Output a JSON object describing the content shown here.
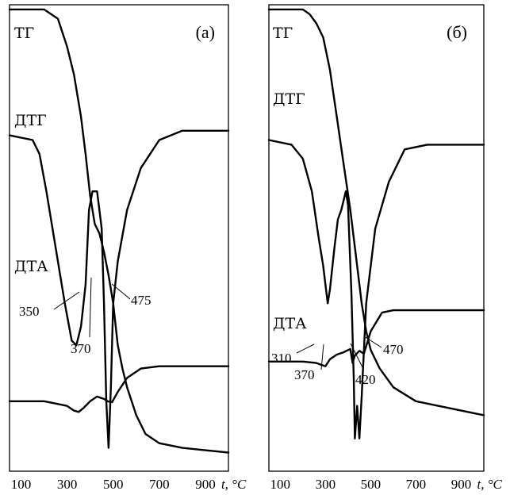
{
  "chart_data": [
    {
      "type": "line",
      "panel_label": "(а)",
      "xlim": [
        50,
        1000
      ],
      "x_ticks": [
        "100",
        "300",
        "500",
        "700",
        "900"
      ],
      "x_unit": "t, °C",
      "grid": false,
      "curves": [
        {
          "name": "ТГ",
          "label": "ТГ",
          "points": [
            [
              50,
              0.99
            ],
            [
              200,
              0.99
            ],
            [
              260,
              0.97
            ],
            [
              300,
              0.91
            ],
            [
              330,
              0.85
            ],
            [
              360,
              0.76
            ],
            [
              380,
              0.68
            ],
            [
              400,
              0.59
            ],
            [
              420,
              0.53
            ],
            [
              440,
              0.51
            ],
            [
              460,
              0.47
            ],
            [
              480,
              0.42
            ],
            [
              500,
              0.36
            ],
            [
              520,
              0.27
            ],
            [
              540,
              0.22
            ],
            [
              560,
              0.18
            ],
            [
              600,
              0.12
            ],
            [
              640,
              0.08
            ],
            [
              700,
              0.06
            ],
            [
              800,
              0.05
            ],
            [
              1000,
              0.04
            ]
          ]
        },
        {
          "name": "ДТГ",
          "label": "ДТГ",
          "points": [
            [
              50,
              0.72
            ],
            [
              150,
              0.71
            ],
            [
              180,
              0.68
            ],
            [
              210,
              0.6
            ],
            [
              250,
              0.48
            ],
            [
              290,
              0.36
            ],
            [
              320,
              0.28
            ],
            [
              340,
              0.27
            ],
            [
              360,
              0.31
            ],
            [
              380,
              0.4
            ],
            [
              395,
              0.56
            ],
            [
              410,
              0.6
            ],
            [
              430,
              0.6
            ],
            [
              450,
              0.52
            ],
            [
              460,
              0.36
            ],
            [
              470,
              0.15
            ],
            [
              480,
              0.05
            ],
            [
              490,
              0.18
            ],
            [
              500,
              0.36
            ],
            [
              520,
              0.45
            ],
            [
              560,
              0.56
            ],
            [
              620,
              0.65
            ],
            [
              700,
              0.71
            ],
            [
              800,
              0.73
            ],
            [
              1000,
              0.73
            ]
          ]
        },
        {
          "name": "ДТА",
          "label": "ДТА",
          "points": [
            [
              50,
              0.15
            ],
            [
              200,
              0.15
            ],
            [
              250,
              0.145
            ],
            [
              300,
              0.14
            ],
            [
              330,
              0.13
            ],
            [
              350,
              0.127
            ],
            [
              370,
              0.135
            ],
            [
              400,
              0.15
            ],
            [
              430,
              0.16
            ],
            [
              460,
              0.155
            ],
            [
              475,
              0.15
            ],
            [
              495,
              0.148
            ],
            [
              520,
              0.17
            ],
            [
              560,
              0.2
            ],
            [
              620,
              0.22
            ],
            [
              700,
              0.225
            ],
            [
              800,
              0.225
            ],
            [
              1000,
              0.225
            ]
          ]
        }
      ],
      "annotations": [
        "350",
        "370",
        "475"
      ]
    },
    {
      "type": "line",
      "panel_label": "(б)",
      "xlim": [
        50,
        1000
      ],
      "x_ticks": [
        "100",
        "300",
        "500",
        "700",
        "900"
      ],
      "x_unit": "t, °C",
      "grid": false,
      "curves": [
        {
          "name": "ТГ",
          "label": "ТГ",
          "points": [
            [
              50,
              0.99
            ],
            [
              200,
              0.99
            ],
            [
              230,
              0.98
            ],
            [
              260,
              0.96
            ],
            [
              290,
              0.93
            ],
            [
              320,
              0.86
            ],
            [
              350,
              0.76
            ],
            [
              380,
              0.66
            ],
            [
              410,
              0.56
            ],
            [
              440,
              0.44
            ],
            [
              460,
              0.36
            ],
            [
              480,
              0.3
            ],
            [
              500,
              0.26
            ],
            [
              540,
              0.22
            ],
            [
              600,
              0.18
            ],
            [
              700,
              0.15
            ],
            [
              800,
              0.14
            ],
            [
              1000,
              0.12
            ]
          ]
        },
        {
          "name": "ДТГ",
          "label": "ДТГ",
          "points": [
            [
              50,
              0.71
            ],
            [
              150,
              0.7
            ],
            [
              200,
              0.67
            ],
            [
              240,
              0.6
            ],
            [
              270,
              0.5
            ],
            [
              290,
              0.44
            ],
            [
              300,
              0.4
            ],
            [
              310,
              0.36
            ],
            [
              320,
              0.39
            ],
            [
              340,
              0.48
            ],
            [
              355,
              0.54
            ],
            [
              370,
              0.56
            ],
            [
              390,
              0.6
            ],
            [
              400,
              0.57
            ],
            [
              415,
              0.38
            ],
            [
              425,
              0.2
            ],
            [
              430,
              0.07
            ],
            [
              440,
              0.14
            ],
            [
              450,
              0.07
            ],
            [
              460,
              0.16
            ],
            [
              480,
              0.36
            ],
            [
              520,
              0.52
            ],
            [
              580,
              0.62
            ],
            [
              650,
              0.69
            ],
            [
              750,
              0.7
            ],
            [
              1000,
              0.7
            ]
          ]
        },
        {
          "name": "ДТА",
          "label": "ДТА",
          "points": [
            [
              50,
              0.235
            ],
            [
              200,
              0.235
            ],
            [
              260,
              0.232
            ],
            [
              300,
              0.225
            ],
            [
              320,
              0.24
            ],
            [
              350,
              0.25
            ],
            [
              380,
              0.255
            ],
            [
              410,
              0.262
            ],
            [
              420,
              0.232
            ],
            [
              430,
              0.248
            ],
            [
              450,
              0.258
            ],
            [
              470,
              0.252
            ],
            [
              500,
              0.3
            ],
            [
              550,
              0.34
            ],
            [
              600,
              0.345
            ],
            [
              700,
              0.345
            ],
            [
              1000,
              0.345
            ]
          ]
        }
      ],
      "annotations": [
        "310",
        "370",
        "420",
        "470"
      ]
    }
  ]
}
